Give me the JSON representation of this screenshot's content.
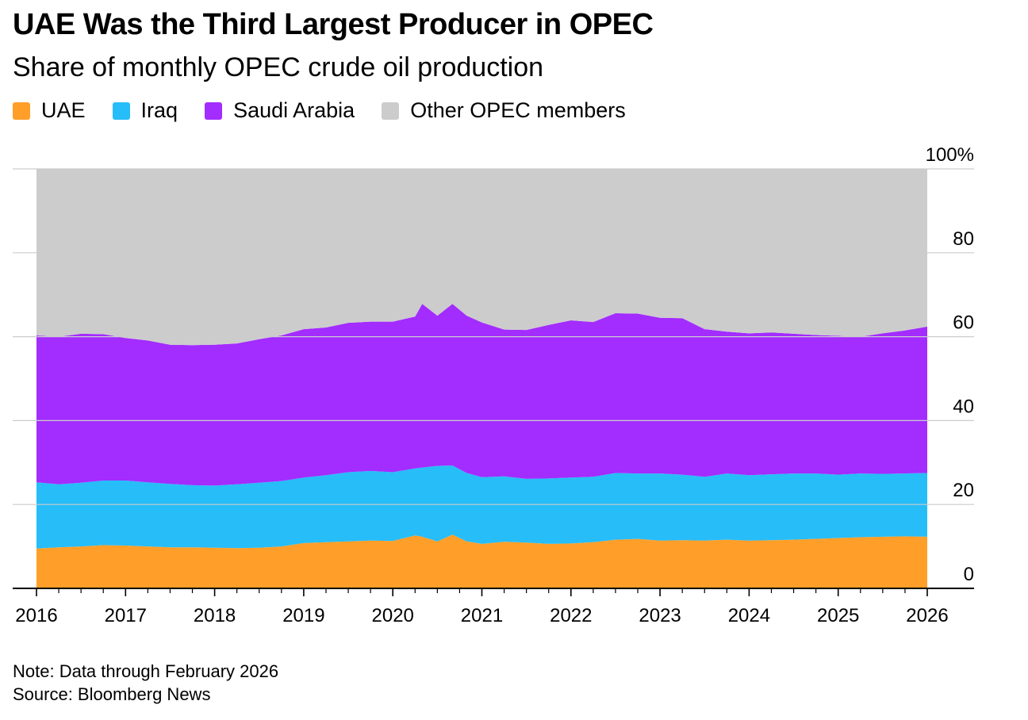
{
  "title": "UAE Was the Third Largest Producer in OPEC",
  "subtitle": "Share of monthly OPEC crude oil production",
  "legend": [
    {
      "label": "UAE",
      "color": "#ff9f29"
    },
    {
      "label": "Iraq",
      "color": "#27bdf8"
    },
    {
      "label": "Saudi Arabia",
      "color": "#a32cff"
    },
    {
      "label": "Other OPEC members",
      "color": "#cccccc"
    }
  ],
  "footer": {
    "note": "Note: Data through February 2026",
    "source": "Source: Bloomberg News"
  },
  "chart_data": {
    "type": "area",
    "stacked": true,
    "title": "UAE Was the Third Largest Producer in OPEC",
    "subtitle": "Share of monthly OPEC crude oil production",
    "xlabel": "",
    "ylabel": "",
    "x_range": [
      2016,
      2026
    ],
    "ylim": [
      0,
      100
    ],
    "y_ticks": [
      0,
      20,
      40,
      60,
      80,
      100
    ],
    "y_tick_labels": [
      "0",
      "20",
      "40",
      "60",
      "80",
      "100%"
    ],
    "x_ticks": [
      2016,
      2017,
      2018,
      2019,
      2020,
      2021,
      2022,
      2023,
      2024,
      2025,
      2026
    ],
    "x_tick_labels": [
      "2016",
      "2017",
      "2018",
      "2019",
      "2020",
      "2021",
      "2022",
      "2023",
      "2024",
      "2025",
      "2026"
    ],
    "y_axis_position": "right",
    "x": [
      2016.0,
      2016.25,
      2016.5,
      2016.75,
      2017.0,
      2017.25,
      2017.5,
      2017.75,
      2018.0,
      2018.25,
      2018.5,
      2018.75,
      2019.0,
      2019.25,
      2019.5,
      2019.75,
      2020.0,
      2020.25,
      2020.33,
      2020.5,
      2020.67,
      2020.83,
      2021.0,
      2021.25,
      2021.5,
      2021.75,
      2022.0,
      2022.25,
      2022.5,
      2022.75,
      2023.0,
      2023.25,
      2023.5,
      2023.75,
      2024.0,
      2024.25,
      2024.5,
      2024.75,
      2025.0,
      2025.25,
      2025.5,
      2025.75,
      2026.0
    ],
    "series": [
      {
        "name": "UAE",
        "color": "#ff9f29",
        "values": [
          9.5,
          9.8,
          10.0,
          10.3,
          10.2,
          10.0,
          9.8,
          9.8,
          9.7,
          9.6,
          9.7,
          10.0,
          10.8,
          11.0,
          11.2,
          11.4,
          11.3,
          12.6,
          12.3,
          11.2,
          12.8,
          11.2,
          10.6,
          11.1,
          10.9,
          10.6,
          10.7,
          11.0,
          11.6,
          11.8,
          11.4,
          11.5,
          11.4,
          11.6,
          11.4,
          11.5,
          11.6,
          11.8,
          12.0,
          12.2,
          12.3,
          12.4,
          12.3
        ]
      },
      {
        "name": "Iraq",
        "color": "#27bdf8",
        "values": [
          15.8,
          15.0,
          15.2,
          15.4,
          15.5,
          15.3,
          15.1,
          14.8,
          14.8,
          15.2,
          15.5,
          15.6,
          15.6,
          16.0,
          16.5,
          16.6,
          16.4,
          16.0,
          16.5,
          18.0,
          16.5,
          16.3,
          15.9,
          15.6,
          15.2,
          15.6,
          15.7,
          15.6,
          15.9,
          15.6,
          16.0,
          15.6,
          15.2,
          15.8,
          15.6,
          15.7,
          15.8,
          15.6,
          15.1,
          15.2,
          15.0,
          15.0,
          15.2
        ]
      },
      {
        "name": "Saudi Arabia",
        "color": "#a32cff",
        "values": [
          35.0,
          35.2,
          35.5,
          34.9,
          34.0,
          33.8,
          33.2,
          33.4,
          33.6,
          33.6,
          34.2,
          34.7,
          35.4,
          35.2,
          35.6,
          35.6,
          35.9,
          36.2,
          39.0,
          35.8,
          38.5,
          37.5,
          36.9,
          35.0,
          35.5,
          36.6,
          37.5,
          36.9,
          38.1,
          38.1,
          37.1,
          37.3,
          35.2,
          33.8,
          33.8,
          33.8,
          33.3,
          33.0,
          33.1,
          32.6,
          33.5,
          34.1,
          34.9
        ]
      },
      {
        "name": "Other OPEC members",
        "color": "#cccccc",
        "values": [
          39.7,
          40.0,
          39.3,
          39.4,
          40.3,
          40.9,
          41.9,
          42.0,
          41.9,
          41.6,
          40.6,
          39.7,
          38.2,
          37.8,
          36.7,
          36.4,
          36.4,
          35.2,
          32.2,
          35.0,
          32.2,
          35.0,
          36.6,
          38.3,
          38.4,
          37.2,
          36.1,
          36.5,
          34.4,
          34.5,
          35.5,
          35.6,
          38.2,
          38.8,
          39.2,
          39.0,
          39.3,
          39.6,
          39.8,
          40.0,
          39.2,
          38.5,
          37.6
        ]
      }
    ],
    "legend_position": "top-left",
    "grid": true,
    "note": "Note: Data through February 2026",
    "source": "Source: Bloomberg News"
  }
}
